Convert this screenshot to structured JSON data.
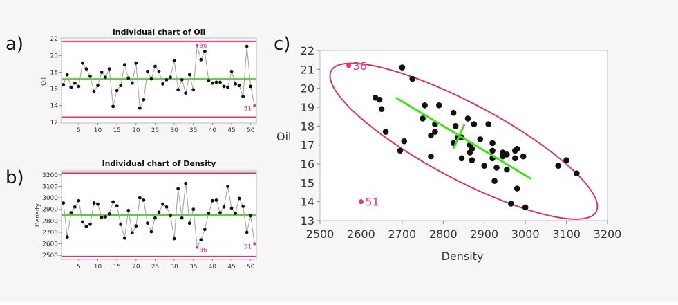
{
  "colors": {
    "limit": "#e8336b",
    "center": "#44e01c",
    "point": "#111111",
    "line": "#a0a0a0",
    "highlight": "#e8336b",
    "ellipse": "#d2386a"
  },
  "chart_data": [
    {
      "panel_label": "a)",
      "type": "line",
      "title": "Individual chart of Oil",
      "xlabel": "",
      "ylabel": "Oil",
      "xlim": [
        0.5,
        51.5
      ],
      "ylim": [
        11.9,
        22.1
      ],
      "xticks": [
        "5",
        "10",
        "15",
        "20",
        "25",
        "30",
        "35",
        "40",
        "45",
        "50"
      ],
      "yticks": [
        "12",
        "14",
        "16",
        "18",
        "20",
        "22"
      ],
      "ucl": 21.7,
      "center": 17.2,
      "lcl": 12.6,
      "x": [
        1,
        2,
        3,
        4,
        5,
        6,
        7,
        8,
        9,
        10,
        11,
        12,
        13,
        14,
        15,
        16,
        17,
        18,
        19,
        20,
        21,
        22,
        23,
        24,
        25,
        26,
        27,
        28,
        29,
        30,
        31,
        32,
        33,
        34,
        35,
        36,
        37,
        38,
        39,
        40,
        41,
        42,
        43,
        44,
        45,
        46,
        47,
        48,
        49,
        50,
        51
      ],
      "values": [
        16.5,
        17.7,
        16.2,
        16.7,
        16.3,
        19.1,
        18.4,
        17.5,
        15.7,
        16.4,
        18.0,
        17.4,
        18.4,
        13.9,
        15.8,
        16.4,
        18.9,
        17.3,
        16.7,
        19.1,
        13.7,
        14.7,
        18.1,
        17.2,
        18.7,
        18.1,
        16.6,
        17.1,
        17.4,
        19.4,
        15.9,
        17.1,
        15.5,
        17.7,
        15.9,
        21.2,
        19.5,
        20.5,
        17.0,
        16.7,
        16.8,
        16.8,
        16.3,
        16.2,
        18.1,
        16.6,
        16.4,
        15.1,
        21.1,
        16.3,
        14.0
      ],
      "annotations": [
        {
          "index": 36,
          "text": "36"
        },
        {
          "index": 51,
          "text": "51"
        }
      ]
    },
    {
      "panel_label": "b)",
      "type": "line",
      "title": "Individual chart of Density",
      "xlabel": "",
      "ylabel": "Density",
      "xlim": [
        0.5,
        51.5
      ],
      "ylim": [
        2465,
        3235
      ],
      "xticks": [
        "5",
        "10",
        "15",
        "20",
        "25",
        "30",
        "35",
        "40",
        "45",
        "50"
      ],
      "yticks": [
        "2500",
        "2600",
        "2700",
        "2800",
        "2900",
        "3000",
        "3100",
        "3200"
      ],
      "ucl": 3215,
      "center": 2850,
      "lcl": 2490,
      "x": [
        1,
        2,
        3,
        4,
        5,
        6,
        7,
        8,
        9,
        10,
        11,
        12,
        13,
        14,
        15,
        16,
        17,
        18,
        19,
        20,
        21,
        22,
        23,
        24,
        25,
        26,
        27,
        28,
        29,
        30,
        31,
        32,
        33,
        34,
        35,
        36,
        37,
        38,
        39,
        40,
        41,
        42,
        43,
        44,
        45,
        46,
        47,
        48,
        49,
        50,
        51
      ],
      "values": [
        2955,
        2660,
        2870,
        2920,
        2975,
        2790,
        2750,
        2770,
        2955,
        2945,
        2830,
        2835,
        2860,
        2965,
        2930,
        2770,
        2650,
        2890,
        2695,
        2755,
        3000,
        2980,
        2780,
        2705,
        2825,
        2875,
        2945,
        2920,
        2845,
        2645,
        3080,
        2825,
        3125,
        2780,
        2900,
        2570,
        2635,
        2725,
        2865,
        2975,
        2980,
        2870,
        2920,
        3100,
        2910,
        2865,
        2995,
        2925,
        2700,
        2845,
        2600
      ],
      "annotations": [
        {
          "index": 36,
          "text": "36"
        },
        {
          "index": 51,
          "text": "51"
        }
      ]
    },
    {
      "panel_label": "c)",
      "type": "scatter",
      "title": "",
      "xlabel": "Density",
      "ylabel": "Oil",
      "xlim": [
        2500,
        3200
      ],
      "ylim": [
        13,
        22
      ],
      "xticks": [
        "2500",
        "2600",
        "2700",
        "2800",
        "2900",
        "3000",
        "3100",
        "3200"
      ],
      "yticks": [
        "13",
        "14",
        "15",
        "16",
        "17",
        "18",
        "19",
        "20",
        "21",
        "22"
      ],
      "x": [
        2955,
        2660,
        2870,
        2920,
        2975,
        2790,
        2750,
        2770,
        2955,
        2945,
        2830,
        2835,
        2860,
        2965,
        2930,
        2770,
        2650,
        2890,
        2695,
        2755,
        3000,
        2980,
        2780,
        2705,
        2825,
        2875,
        2945,
        2920,
        2845,
        2645,
        3080,
        2825,
        3125,
        2780,
        2900,
        2570,
        2635,
        2725,
        2865,
        2975,
        2980,
        2870,
        2920,
        3100,
        2910,
        2865,
        2995,
        2925,
        2700,
        2845,
        2600
      ],
      "y": [
        16.5,
        17.7,
        16.2,
        16.7,
        16.3,
        19.1,
        18.4,
        17.5,
        15.7,
        16.4,
        18.0,
        17.4,
        18.4,
        13.9,
        15.8,
        16.4,
        18.9,
        17.3,
        16.7,
        19.1,
        13.7,
        14.7,
        18.1,
        17.2,
        18.7,
        18.1,
        16.6,
        17.1,
        17.4,
        19.4,
        15.9,
        17.1,
        15.5,
        17.7,
        15.9,
        21.2,
        19.5,
        20.5,
        17.0,
        16.7,
        16.8,
        16.8,
        16.3,
        16.2,
        18.1,
        16.6,
        16.4,
        15.1,
        21.1,
        16.3,
        14.0
      ],
      "annotations": [
        {
          "index": 36,
          "text": "36"
        },
        {
          "index": 51,
          "text": "51"
        }
      ],
      "center": [
        2850,
        17.2
      ],
      "principal_axis": [
        [
          2685,
          19.5
        ],
        [
          3015,
          15.2
        ]
      ],
      "minor_axis": [
        [
          2825,
          16.8
        ],
        [
          2852,
          18.1
        ]
      ]
    }
  ]
}
